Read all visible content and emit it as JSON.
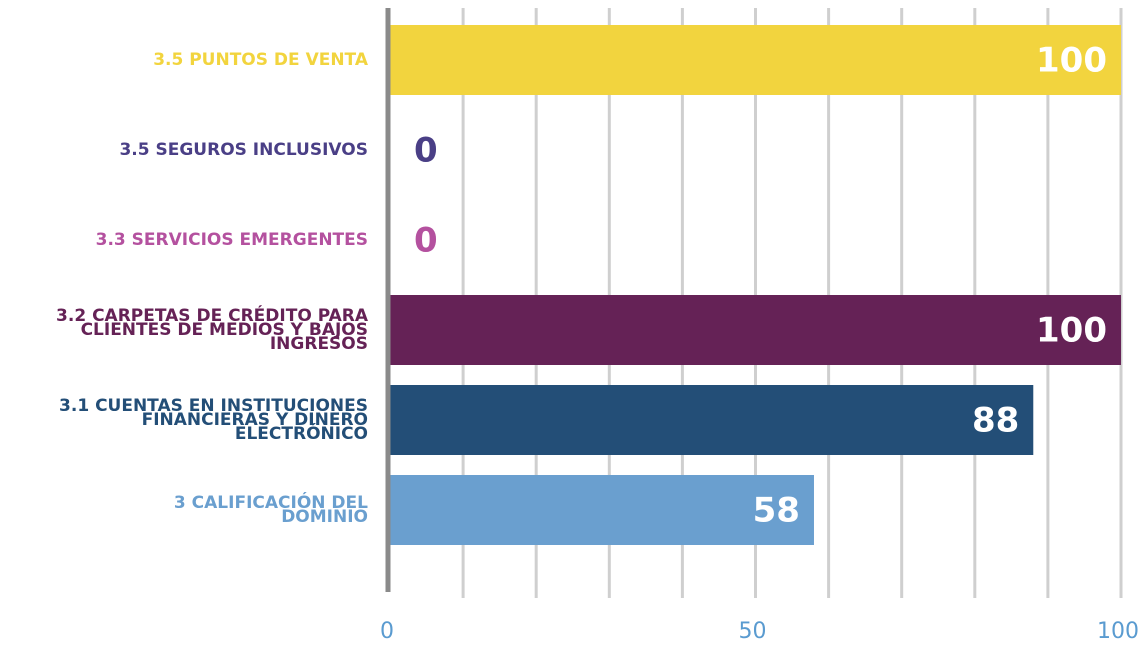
{
  "chart_data": {
    "type": "hbar",
    "categories": [
      "3.5 PUNTOS DE VENTA",
      "3.5 SEGUROS INCLUSIVOS",
      "3.3 SERVICIOS EMERGENTES",
      "3.2 CARPETAS DE CRÉDITO PARA\nCLIENTES DE MEDIOS Y BAJOS\nINGRESOS",
      "3.1 CUENTAS EN INSTITUCIONES\nFINANCIERAS Y  DINERO\nELECTRÓNICO",
      "3 CALIFICACIÓN DEL\nDOMINIO"
    ],
    "values": [
      100,
      0,
      0,
      100,
      88,
      58
    ],
    "colors": [
      "#f2d43e",
      "#4a3f86",
      "#b4519f",
      "#652256",
      "#234e77",
      "#6a9fcf"
    ],
    "xlim": [
      0,
      100
    ],
    "xticks": [
      0,
      50,
      100
    ],
    "grid_ticks": [
      10,
      20,
      30,
      40,
      50,
      60,
      70,
      80,
      90,
      100
    ],
    "grid": true
  }
}
